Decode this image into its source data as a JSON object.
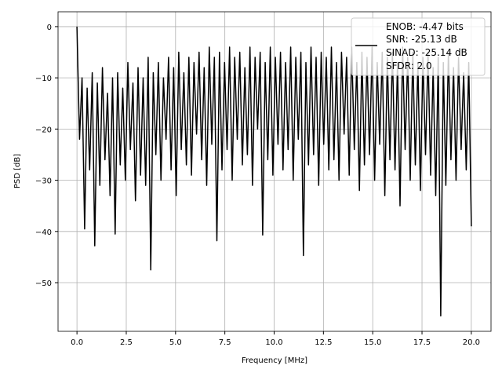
{
  "chart_data": {
    "type": "line",
    "title": "",
    "xlabel": "Frequency [MHz]",
    "ylabel": "PSD [dB]",
    "xlim": [
      -0.96,
      21.0
    ],
    "ylim": [
      -59.5,
      2.9
    ],
    "x_range": [
      0,
      20
    ],
    "xticks": [
      0,
      2.5,
      5,
      7.5,
      10,
      12.5,
      15,
      17.5,
      20
    ],
    "xtick_labels": [
      "0.0",
      "2.5",
      "5.0",
      "7.5",
      "10.0",
      "12.5",
      "15.0",
      "17.5",
      "20.0"
    ],
    "yticks": [
      0,
      -10,
      -20,
      -30,
      -40,
      -50
    ],
    "ytick_labels": [
      "0",
      "−10",
      "−20",
      "−30",
      "−40",
      "−50"
    ],
    "grid": true,
    "line_color": "#000000",
    "legend": {
      "placement": "top-right",
      "entries": [
        "ENOB: -4.47 bits",
        "SNR: -25.13 dB",
        "SINAD: -25.14 dB",
        "SFDR: 2.0"
      ]
    },
    "series": [
      {
        "name": "PSD",
        "values": [
          0,
          -22,
          -10,
          -39.5,
          -12,
          -28,
          -9,
          -42.8,
          -11,
          -31,
          -8,
          -26,
          -13,
          -33,
          -10,
          -40.5,
          -9,
          -27,
          -12,
          -30,
          -7,
          -24,
          -11,
          -34,
          -8,
          -29,
          -10,
          -31,
          -6,
          -47.5,
          -9,
          -25,
          -7,
          -30,
          -10,
          -22,
          -6,
          -28,
          -8,
          -33,
          -5,
          -24,
          -9,
          -27,
          -6,
          -29,
          -7,
          -21,
          -5,
          -26,
          -8,
          -31,
          -4,
          -23,
          -6,
          -41.8,
          -5,
          -28,
          -7,
          -24,
          -4,
          -30,
          -6,
          -22,
          -5,
          -27,
          -8,
          -25,
          -4,
          -31,
          -6,
          -20,
          -5,
          -40.7,
          -7,
          -26,
          -4,
          -29,
          -6,
          -23,
          -5,
          -28,
          -7,
          -24,
          -4,
          -30,
          -6,
          -22,
          -5,
          -44.7,
          -7,
          -27,
          -4,
          -25,
          -6,
          -31,
          -5,
          -23,
          -6,
          -28,
          -4,
          -26,
          -7,
          -30,
          -5,
          -21,
          -6,
          -29,
          -4,
          -24,
          -7,
          -32,
          -5,
          -27,
          -6,
          -25,
          -4,
          -30,
          -7,
          -23,
          -5,
          -33,
          -6,
          -26,
          -5,
          -28,
          -7,
          -35,
          -4,
          -24,
          -6,
          -30,
          -5,
          -27,
          -7,
          -32,
          -6,
          -25,
          -5,
          -29,
          -8,
          -33,
          -6,
          -56.5,
          -7,
          -31,
          -5,
          -26,
          -8,
          -30,
          -6,
          -24,
          -9,
          -28,
          -7,
          -39
        ]
      }
    ]
  }
}
